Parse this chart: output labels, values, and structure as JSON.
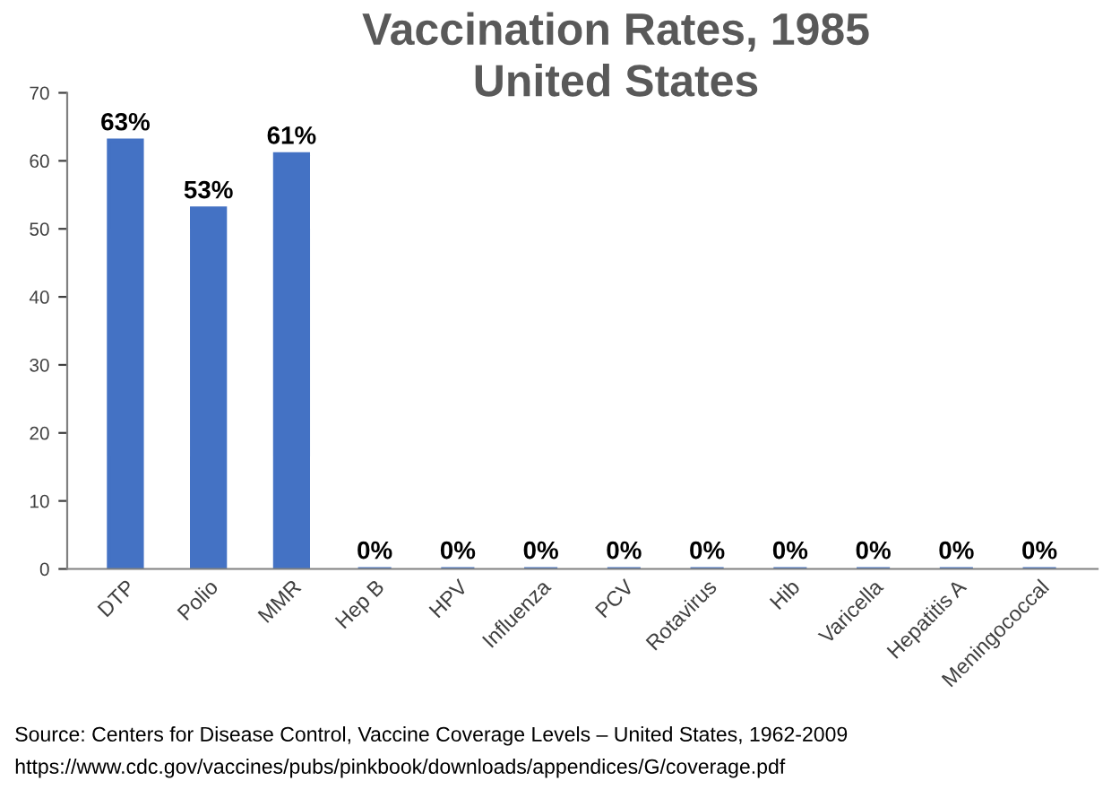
{
  "chart_data": {
    "type": "bar",
    "title": "Vaccination Rates, 1985\nUnited States",
    "categories": [
      "DTP",
      "Polio",
      "MMR",
      "Hep B",
      "HPV",
      "Influenza",
      "PCV",
      "Rotavirus",
      "Hib",
      "Varicella",
      "Hepatitis A",
      "Meningococcal"
    ],
    "values": [
      63,
      53,
      61,
      0,
      0,
      0,
      0,
      0,
      0,
      0,
      0,
      0
    ],
    "value_labels": [
      "63%",
      "53%",
      "61%",
      "0%",
      "0%",
      "0%",
      "0%",
      "0%",
      "0%",
      "0%",
      "0%",
      "0%"
    ],
    "color": "#4472c4",
    "ylim": [
      0,
      70
    ],
    "yticks": [
      0,
      10,
      20,
      30,
      40,
      50,
      60,
      70
    ],
    "grid": false,
    "legend": false,
    "annotations": [
      "Source: Centers for Disease Control, Vaccine Coverage Levels – United States, 1962-2009",
      "https://www.cdc.gov/vaccines/pubs/pinkbook/downloads/appendices/G/coverage.pdf"
    ]
  }
}
